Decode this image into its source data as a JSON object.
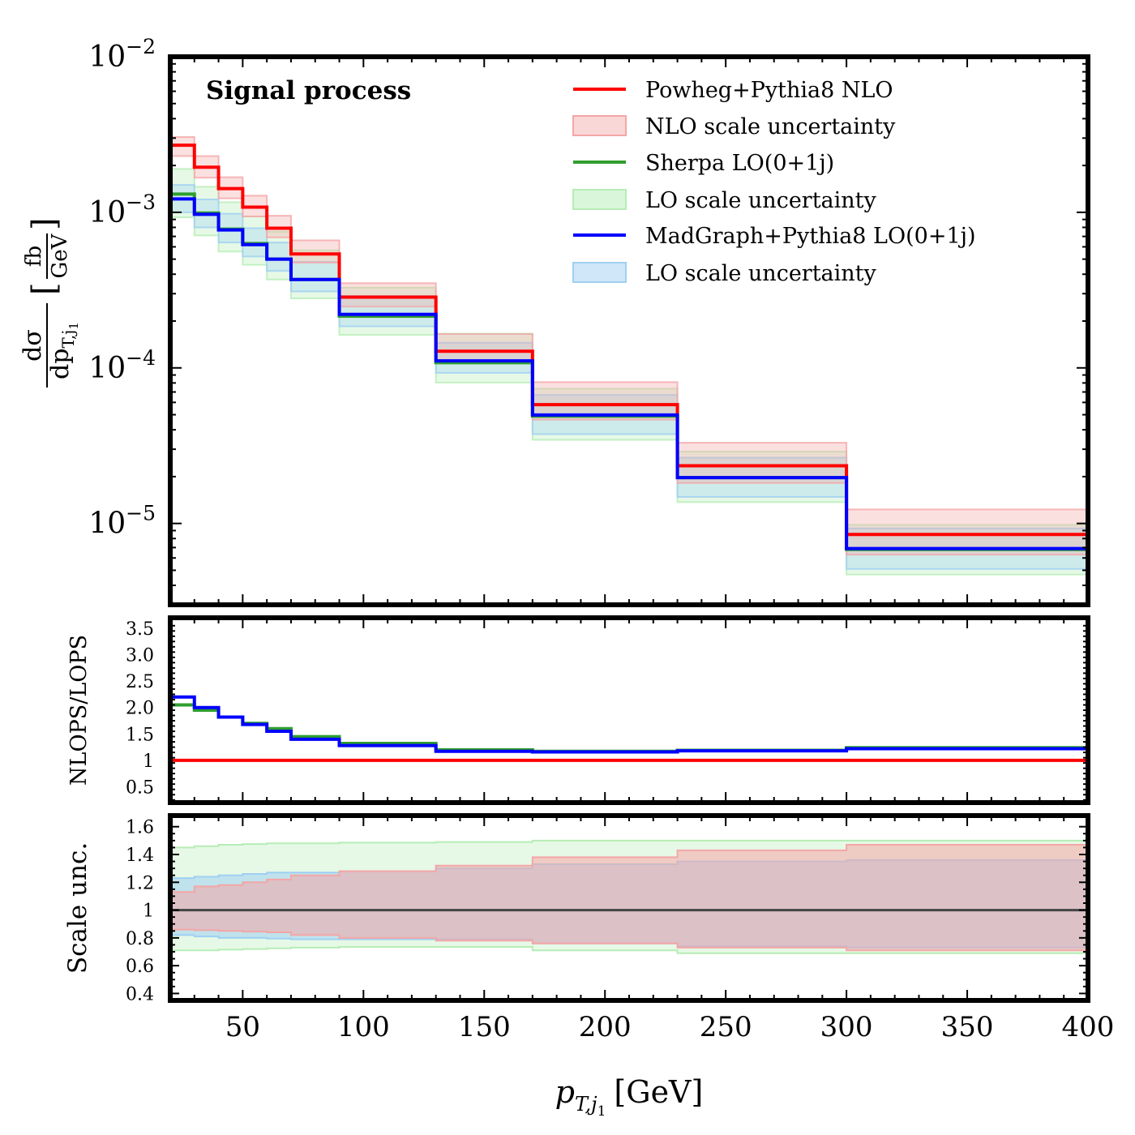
{
  "chart_data": {
    "type": "line",
    "title": "Signal process",
    "x_label_main": "p",
    "x_label_sub": "T,j",
    "x_label_subsub": "1",
    "x_label_unit": "[GeV]",
    "xlim": [
      20,
      400
    ],
    "x_ticks": [
      50,
      100,
      150,
      200,
      250,
      300,
      350,
      400
    ],
    "x_tick_labels": [
      "50",
      "100",
      "150",
      "200",
      "250",
      "300",
      "350",
      "400"
    ],
    "bin_edges": [
      20,
      30,
      40,
      50,
      60,
      70,
      90,
      130,
      170,
      230,
      300,
      400
    ],
    "main_panel": {
      "ylabel_num": "dσ",
      "ylabel_den": "dp",
      "ylabel_den_sub": "T,j",
      "ylabel_den_subsub": "1",
      "ylabel_unit_num": "fb",
      "ylabel_unit_den": "GeV",
      "yscale": "log",
      "ylim": [
        3e-06,
        0.01
      ],
      "y_ticks": [
        {
          "base": "10",
          "exp": "−2",
          "value": 0.01
        },
        {
          "base": "10",
          "exp": "−3",
          "value": 0.001
        },
        {
          "base": "10",
          "exp": "−4",
          "value": 0.0001
        },
        {
          "base": "10",
          "exp": "−5",
          "value": 1e-05
        }
      ],
      "series": [
        {
          "name": "Powheg+Pythia8 NLO",
          "color": "#ff0000",
          "values": [
            0.0027,
            0.00195,
            0.00142,
            0.00108,
            0.00079,
            0.00054,
            0.000285,
            0.000128,
            5.8e-05,
            2.35e-05,
            8.5e-06
          ],
          "band_label": "NLO scale uncertainty",
          "band_color": "#f4a6a6",
          "band_low": [
            0.0023,
            0.00167,
            0.00123,
            0.00094,
            0.00069,
            0.000475,
            0.000248,
            0.000109,
            4.65e-05,
            1.82e-05,
            6.3e-06
          ],
          "band_high": [
            0.00305,
            0.0023,
            0.00168,
            0.00128,
            0.00095,
            0.00066,
            0.00035,
            0.000165,
            8.1e-05,
            3.3e-05,
            1.23e-05
          ]
        },
        {
          "name": "Sherpa LO(0+1j)",
          "color": "#2e9e2e",
          "values": [
            0.00131,
            0.00099,
            0.00078,
            0.00063,
            0.0005,
            0.00037,
            0.000215,
            0.000108,
            4.9e-05,
            1.97e-05,
            6.8e-06
          ],
          "band_label": "LO scale uncertainty",
          "band_color": "#b6edb6",
          "band_low": [
            0.00093,
            0.00071,
            0.00056,
            0.00046,
            0.00037,
            0.00028,
            0.000163,
            8.05e-05,
            3.45e-05,
            1.37e-05,
            4.7e-06
          ],
          "band_high": [
            0.0019,
            0.00146,
            0.00116,
            0.00094,
            0.00075,
            0.00057,
            0.000328,
            0.000166,
            7.35e-05,
            2.9e-05,
            9.8e-06
          ]
        },
        {
          "name": "MadGraph+Pythia8 LO(0+1j)",
          "color": "#0000ff",
          "values": [
            0.00122,
            0.00097,
            0.00077,
            0.00062,
            0.0005,
            0.00037,
            0.000221,
            0.000111,
            4.98e-05,
            1.97e-05,
            6.9e-06
          ],
          "band_label": "LO scale uncertainty",
          "band_color": "#9fd0f2",
          "band_low": [
            0.001,
            0.0008,
            0.00064,
            0.00052,
            0.00042,
            0.00031,
            0.000185,
            9.3e-05,
            3.75e-05,
            1.48e-05,
            5.1e-06
          ],
          "band_high": [
            0.0015,
            0.00121,
            0.00098,
            0.00079,
            0.00064,
            0.00048,
            0.00029,
            0.000145,
            6.7e-05,
            2.65e-05,
            9.3e-06
          ]
        }
      ]
    },
    "ratio_panel": {
      "ylabel": "NLOPS/LOPS",
      "ylim": [
        0.2,
        3.7
      ],
      "y_ticks": [
        0.5,
        1,
        1.5,
        2,
        2.5,
        3,
        3.5
      ],
      "y_tick_labels": [
        "0.5",
        "1",
        "1.5",
        "2.0",
        "2.5",
        "3.0",
        "3.5"
      ],
      "series": [
        {
          "name": "Powheg+Pythia8 NLO",
          "color": "#ff0000",
          "values": [
            1,
            1,
            1,
            1,
            1,
            1,
            1,
            1,
            1,
            1,
            1
          ]
        },
        {
          "name": "Sherpa LO(0+1j)",
          "color": "#2e9e2e",
          "values": [
            2.05,
            1.95,
            1.82,
            1.7,
            1.6,
            1.45,
            1.32,
            1.2,
            1.17,
            1.19,
            1.24
          ]
        },
        {
          "name": "MadGraph+Pythia8 LO(0+1j)",
          "color": "#0000ff",
          "values": [
            2.2,
            2.0,
            1.82,
            1.68,
            1.55,
            1.4,
            1.28,
            1.17,
            1.16,
            1.18,
            1.22
          ]
        }
      ]
    },
    "scale_panel": {
      "ylabel": "Scale unc.",
      "ylim": [
        0.35,
        1.68
      ],
      "y_ticks": [
        0.4,
        0.6,
        0.8,
        1,
        1.2,
        1.4,
        1.6
      ],
      "y_tick_labels": [
        "0.4",
        "0.6",
        "0.8",
        "1",
        "1.2",
        "1.4",
        "1.6"
      ],
      "reference": 1,
      "bands": [
        {
          "name": "Sherpa LO scale uncertainty",
          "color": "#b6edb6",
          "low": [
            0.71,
            0.71,
            0.715,
            0.72,
            0.725,
            0.73,
            0.735,
            0.735,
            0.71,
            0.69,
            0.69
          ],
          "high": [
            1.45,
            1.46,
            1.47,
            1.475,
            1.48,
            1.48,
            1.485,
            1.49,
            1.5,
            1.5,
            1.5
          ]
        },
        {
          "name": "MadGraph LO scale uncertainty",
          "color": "#9fd0f2",
          "low": [
            0.82,
            0.81,
            0.8,
            0.8,
            0.795,
            0.79,
            0.79,
            0.79,
            0.76,
            0.74,
            0.73
          ],
          "high": [
            1.23,
            1.24,
            1.25,
            1.26,
            1.27,
            1.27,
            1.28,
            1.3,
            1.33,
            1.35,
            1.36
          ]
        },
        {
          "name": "NLO scale uncertainty",
          "color": "#f4a6a6",
          "low": [
            0.86,
            0.855,
            0.85,
            0.845,
            0.84,
            0.82,
            0.8,
            0.78,
            0.76,
            0.73,
            0.71
          ],
          "high": [
            1.13,
            1.17,
            1.18,
            1.2,
            1.22,
            1.25,
            1.28,
            1.32,
            1.38,
            1.43,
            1.47
          ]
        }
      ]
    }
  }
}
